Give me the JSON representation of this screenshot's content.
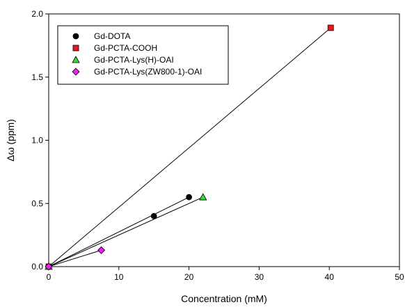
{
  "chart_data": {
    "type": "scatter",
    "xlabel": "Concentration (mM)",
    "ylabel": "Δω (ppm)",
    "xlim": [
      0,
      50
    ],
    "ylim": [
      0,
      2.0
    ],
    "x_ticks": [
      0,
      10,
      20,
      30,
      40,
      50
    ],
    "y_ticks": [
      "0.0",
      "0.5",
      "1.0",
      "1.5",
      "2.0"
    ],
    "grid": false,
    "legend_position": "top-left",
    "series": [
      {
        "name": "Gd-DOTA",
        "marker": "circle",
        "color": "#000000",
        "points": [
          [
            0,
            0
          ],
          [
            15,
            0.4
          ],
          [
            20,
            0.55
          ]
        ],
        "fit_line": [
          [
            0,
            0
          ],
          [
            20,
            0.55
          ]
        ]
      },
      {
        "name": "Gd-PCTA-COOH",
        "marker": "square",
        "color": "#e41a1c",
        "points": [
          [
            0,
            0
          ],
          [
            40.2,
            1.89
          ]
        ],
        "fit_line": [
          [
            0,
            0
          ],
          [
            40.2,
            1.89
          ]
        ]
      },
      {
        "name": "Gd-PCTA-Lys(H)-OAI",
        "marker": "triangle",
        "color": "#33dd33",
        "points": [
          [
            0,
            0
          ],
          [
            22,
            0.55
          ]
        ],
        "fit_line": [
          [
            0,
            0
          ],
          [
            22,
            0.55
          ]
        ]
      },
      {
        "name": "Gd-PCTA-Lys(ZW800-1)-OAI",
        "marker": "diamond",
        "color": "#ee22ee",
        "points": [
          [
            0,
            0
          ],
          [
            7.5,
            0.13
          ]
        ],
        "fit_line": [
          [
            0,
            0
          ],
          [
            7.5,
            0.13
          ]
        ]
      }
    ]
  }
}
